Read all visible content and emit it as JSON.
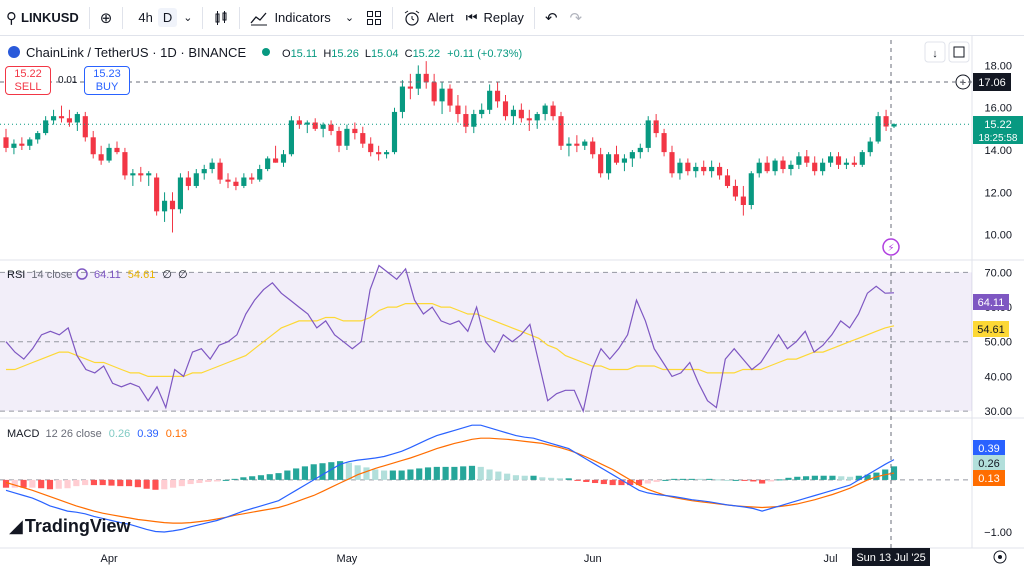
{
  "toolbar": {
    "symbol": "LINKUSD",
    "interval_a": "4h",
    "interval_b": "D",
    "indicators_label": "Indicators",
    "alert_label": "Alert",
    "replay_label": "Replay"
  },
  "legend": {
    "title": "ChainLink / TetherUS · 1D · BINANCE",
    "o_label": "O",
    "o_value": "15.11",
    "h_label": "H",
    "h_value": "15.26",
    "l_label": "L",
    "l_value": "15.04",
    "c_label": "C",
    "c_value": "15.22",
    "change": "+0.11 (+0.73%)"
  },
  "trade": {
    "sell_price": "15.22",
    "sell_label": "SELL",
    "buy_price": "15.23",
    "buy_label": "BUY",
    "spread": "0.01"
  },
  "rsi_legend": {
    "name": "RSI",
    "params": "14 close",
    "v1": "64.11",
    "v2": "54.61",
    "v3": "∅",
    "v4": "∅"
  },
  "macd_legend": {
    "name": "MACD",
    "params": "12 26 close",
    "v1": "0.26",
    "v2": "0.39",
    "v3": "0.13"
  },
  "price_labels": {
    "crosshair": "17.06",
    "last_price": "15.22",
    "countdown": "18:25:58"
  },
  "rsi_labels": {
    "rsi": "64.11",
    "ma": "54.61"
  },
  "macd_labels": {
    "macd": "0.39",
    "hist": "0.26",
    "signal": "0.13"
  },
  "date_marker": "Sun 13 Jul '25",
  "logo_text": "TradingView",
  "colors": {
    "up": "#089981",
    "down": "#f23645",
    "rsi": "#7e57c2",
    "rsi_ma": "#fdd835",
    "macd": "#2962ff",
    "signal": "#ff6d00",
    "hist_up_strong": "#26a69a",
    "hist_up_weak": "#b2dfdb",
    "hist_down_strong": "#ff5252",
    "hist_down_weak": "#ffcdd2"
  },
  "chart_data": [
    {
      "type": "candlestick",
      "pane": "price",
      "title": "ChainLink / TetherUS · 1D · BINANCE",
      "x_tick_labels": [
        "Apr",
        "May",
        "Jun",
        "Jul"
      ],
      "y_ticks": [
        18.0,
        16.0,
        14.0,
        12.0,
        10.0
      ],
      "ylim": [
        8.8,
        19.2
      ],
      "ohlc": [
        [
          14.6,
          15.0,
          13.9,
          14.1
        ],
        [
          14.1,
          14.5,
          13.8,
          14.3
        ],
        [
          14.3,
          14.6,
          14.0,
          14.2
        ],
        [
          14.2,
          14.6,
          14.0,
          14.5
        ],
        [
          14.5,
          14.9,
          14.3,
          14.8
        ],
        [
          14.8,
          15.6,
          14.7,
          15.4
        ],
        [
          15.4,
          15.9,
          15.2,
          15.6
        ],
        [
          15.6,
          16.1,
          15.3,
          15.5
        ],
        [
          15.5,
          15.9,
          15.1,
          15.3
        ],
        [
          15.3,
          15.8,
          14.9,
          15.7
        ],
        [
          15.6,
          15.8,
          14.4,
          14.6
        ],
        [
          14.6,
          14.9,
          13.6,
          13.8
        ],
        [
          13.8,
          14.2,
          13.3,
          13.5
        ],
        [
          13.5,
          14.3,
          13.4,
          14.1
        ],
        [
          14.1,
          14.4,
          13.8,
          13.9
        ],
        [
          13.9,
          14.1,
          12.6,
          12.8
        ],
        [
          12.8,
          13.1,
          12.3,
          12.9
        ],
        [
          12.9,
          13.2,
          12.5,
          12.8
        ],
        [
          12.8,
          13.0,
          12.3,
          12.9
        ],
        [
          12.7,
          12.9,
          10.9,
          11.1
        ],
        [
          11.1,
          12.0,
          10.6,
          11.6
        ],
        [
          11.6,
          12.0,
          10.1,
          11.2
        ],
        [
          11.2,
          12.9,
          11.0,
          12.7
        ],
        [
          12.7,
          13.0,
          12.1,
          12.3
        ],
        [
          12.3,
          13.1,
          12.2,
          12.9
        ],
        [
          12.9,
          13.3,
          12.6,
          13.1
        ],
        [
          13.1,
          13.6,
          12.9,
          13.4
        ],
        [
          13.4,
          13.6,
          12.4,
          12.6
        ],
        [
          12.6,
          12.9,
          12.2,
          12.5
        ],
        [
          12.5,
          12.7,
          12.1,
          12.3
        ],
        [
          12.3,
          12.9,
          12.2,
          12.7
        ],
        [
          12.7,
          12.9,
          12.4,
          12.6
        ],
        [
          12.6,
          13.3,
          12.5,
          13.1
        ],
        [
          13.1,
          13.7,
          13.0,
          13.6
        ],
        [
          13.6,
          14.2,
          13.4,
          13.4
        ],
        [
          13.4,
          14.0,
          13.2,
          13.8
        ],
        [
          13.8,
          15.6,
          13.7,
          15.4
        ],
        [
          15.4,
          15.6,
          15.0,
          15.2
        ],
        [
          15.2,
          15.4,
          14.8,
          15.3
        ],
        [
          15.3,
          15.5,
          14.9,
          15.0
        ],
        [
          15.0,
          15.3,
          14.6,
          15.2
        ],
        [
          15.2,
          15.4,
          14.7,
          14.9
        ],
        [
          14.9,
          15.1,
          13.9,
          14.2
        ],
        [
          14.2,
          15.2,
          14.0,
          15.0
        ],
        [
          15.0,
          15.3,
          14.5,
          14.8
        ],
        [
          14.8,
          15.1,
          14.1,
          14.3
        ],
        [
          14.3,
          14.6,
          13.7,
          13.9
        ],
        [
          13.9,
          14.2,
          13.5,
          13.8
        ],
        [
          13.8,
          14.0,
          13.6,
          13.9
        ],
        [
          13.9,
          16.0,
          13.8,
          15.8
        ],
        [
          15.8,
          17.3,
          15.5,
          17.0
        ],
        [
          17.0,
          17.6,
          16.4,
          16.9
        ],
        [
          16.9,
          18.0,
          16.6,
          17.6
        ],
        [
          17.6,
          18.2,
          16.9,
          17.2
        ],
        [
          17.2,
          17.6,
          16.1,
          16.3
        ],
        [
          16.3,
          17.2,
          15.7,
          16.9
        ],
        [
          16.9,
          17.1,
          15.8,
          16.1
        ],
        [
          16.1,
          16.6,
          15.3,
          15.7
        ],
        [
          15.7,
          16.1,
          14.8,
          15.1
        ],
        [
          15.1,
          15.9,
          14.8,
          15.7
        ],
        [
          15.7,
          16.2,
          15.5,
          15.9
        ],
        [
          15.9,
          17.1,
          15.7,
          16.8
        ],
        [
          16.8,
          17.2,
          16.0,
          16.3
        ],
        [
          16.3,
          16.6,
          15.4,
          15.6
        ],
        [
          15.6,
          16.1,
          15.2,
          15.9
        ],
        [
          15.9,
          16.2,
          15.3,
          15.5
        ],
        [
          15.5,
          15.9,
          14.9,
          15.4
        ],
        [
          15.4,
          15.8,
          15.0,
          15.7
        ],
        [
          15.7,
          16.2,
          15.4,
          16.1
        ],
        [
          16.1,
          16.3,
          15.4,
          15.6
        ],
        [
          15.6,
          15.8,
          14.0,
          14.2
        ],
        [
          14.2,
          14.6,
          13.7,
          14.3
        ],
        [
          14.3,
          14.7,
          13.9,
          14.2
        ],
        [
          14.2,
          14.5,
          14.0,
          14.4
        ],
        [
          14.4,
          14.6,
          13.6,
          13.8
        ],
        [
          13.8,
          14.1,
          12.7,
          12.9
        ],
        [
          12.9,
          13.9,
          12.6,
          13.8
        ],
        [
          13.8,
          14.2,
          13.3,
          13.4
        ],
        [
          13.4,
          13.8,
          13.0,
          13.6
        ],
        [
          13.6,
          14.0,
          13.2,
          13.9
        ],
        [
          13.9,
          14.3,
          13.6,
          14.1
        ],
        [
          14.1,
          15.6,
          13.9,
          15.4
        ],
        [
          15.4,
          15.7,
          14.6,
          14.8
        ],
        [
          14.8,
          15.0,
          13.7,
          13.9
        ],
        [
          13.9,
          14.2,
          12.7,
          12.9
        ],
        [
          12.9,
          13.6,
          12.6,
          13.4
        ],
        [
          13.4,
          13.6,
          12.8,
          13.0
        ],
        [
          13.0,
          13.4,
          12.7,
          13.2
        ],
        [
          13.2,
          13.5,
          12.8,
          13.0
        ],
        [
          13.0,
          13.5,
          12.7,
          13.2
        ],
        [
          13.2,
          13.4,
          12.6,
          12.8
        ],
        [
          12.8,
          13.1,
          12.2,
          12.3
        ],
        [
          12.3,
          12.6,
          11.6,
          11.8
        ],
        [
          11.8,
          12.3,
          10.9,
          11.4
        ],
        [
          11.4,
          13.0,
          11.2,
          12.9
        ],
        [
          12.9,
          13.6,
          12.7,
          13.4
        ],
        [
          13.4,
          13.7,
          12.9,
          13.0
        ],
        [
          13.0,
          13.6,
          12.8,
          13.5
        ],
        [
          13.5,
          13.7,
          12.9,
          13.1
        ],
        [
          13.1,
          13.5,
          12.8,
          13.3
        ],
        [
          13.3,
          13.9,
          13.1,
          13.7
        ],
        [
          13.7,
          14.0,
          13.2,
          13.4
        ],
        [
          13.4,
          13.7,
          12.8,
          13.0
        ],
        [
          13.0,
          13.6,
          12.8,
          13.4
        ],
        [
          13.4,
          13.9,
          13.2,
          13.7
        ],
        [
          13.7,
          13.9,
          13.1,
          13.3
        ],
        [
          13.3,
          13.6,
          13.1,
          13.4
        ],
        [
          13.4,
          13.7,
          13.2,
          13.3
        ],
        [
          13.3,
          14.0,
          13.2,
          13.9
        ],
        [
          13.9,
          14.6,
          13.7,
          14.4
        ],
        [
          14.4,
          15.8,
          14.3,
          15.6
        ],
        [
          15.6,
          15.9,
          14.9,
          15.11
        ],
        [
          15.11,
          15.26,
          15.04,
          15.22
        ]
      ],
      "markers": {
        "last_price": 15.22,
        "crosshair_price": 17.06
      }
    },
    {
      "type": "line",
      "pane": "rsi",
      "title": "RSI 14 close",
      "y_ticks": [
        70.0,
        60.0,
        50.0,
        40.0,
        30.0
      ],
      "ylim": [
        28,
        73
      ],
      "bands": [
        30,
        50,
        70
      ],
      "series": [
        {
          "name": "RSI",
          "values": [
            50,
            47,
            45,
            48,
            52,
            53,
            52,
            54,
            46,
            42,
            41,
            43,
            38,
            37,
            38,
            37,
            33,
            37,
            31,
            42,
            40,
            47,
            48,
            45,
            49,
            50,
            52,
            58,
            62,
            65,
            67,
            64,
            62,
            60,
            58,
            54,
            56,
            52,
            50,
            48,
            50,
            65,
            72,
            70,
            68,
            71,
            62,
            58,
            60,
            56,
            55,
            56,
            53,
            60,
            50,
            47,
            52,
            50,
            52,
            55,
            44,
            33,
            35,
            36,
            36,
            30,
            42,
            48,
            45,
            48,
            52,
            62,
            56,
            48,
            44,
            40,
            41,
            44,
            38,
            33,
            31,
            45,
            48,
            45,
            42,
            44,
            48,
            52,
            48,
            50,
            53,
            47,
            49,
            52,
            56,
            54,
            58,
            64,
            66,
            64,
            64.11
          ]
        },
        {
          "name": "MA",
          "values": [
            42,
            42,
            43,
            44,
            45,
            46,
            47,
            47,
            46,
            45,
            44,
            44,
            43,
            42,
            41,
            41,
            40,
            40,
            40,
            40,
            40,
            41,
            41,
            42,
            43,
            44,
            45,
            46,
            48,
            50,
            52,
            54,
            55,
            56,
            56,
            56,
            57,
            57,
            56,
            56,
            56,
            57,
            59,
            60,
            60,
            61,
            61,
            61,
            61,
            60,
            60,
            59,
            58,
            58,
            57,
            56,
            55,
            54,
            53,
            52,
            51,
            49,
            48,
            46,
            45,
            44,
            43,
            43,
            42,
            42,
            42,
            43,
            43,
            43,
            42,
            42,
            42,
            42,
            42,
            41,
            41,
            41,
            41,
            42,
            42,
            42,
            43,
            44,
            45,
            45,
            46,
            47,
            47,
            48,
            49,
            50,
            51,
            52,
            53,
            54,
            54.61
          ]
        }
      ]
    },
    {
      "type": "line+bar",
      "pane": "macd",
      "title": "MACD 12 26 close",
      "y_ticks": [
        -1.0
      ],
      "ylim": [
        -1.25,
        1.15
      ],
      "series": [
        {
          "name": "MACD",
          "values": [
            -0.2,
            -0.25,
            -0.3,
            -0.35,
            -0.42,
            -0.5,
            -0.55,
            -0.6,
            -0.62,
            -0.65,
            -0.7,
            -0.74,
            -0.78,
            -0.82,
            -0.85,
            -0.9,
            -0.95,
            -0.99,
            -1.0,
            -0.98,
            -0.95,
            -0.9,
            -0.86,
            -0.82,
            -0.78,
            -0.72,
            -0.66,
            -0.6,
            -0.55,
            -0.5,
            -0.45,
            -0.4,
            -0.3,
            -0.2,
            -0.1,
            0.0,
            0.1,
            0.2,
            0.3,
            0.35,
            0.38,
            0.4,
            0.42,
            0.45,
            0.5,
            0.55,
            0.62,
            0.7,
            0.78,
            0.85,
            0.9,
            0.95,
            1.0,
            1.05,
            1.05,
            1.0,
            0.95,
            0.9,
            0.85,
            0.82,
            0.8,
            0.75,
            0.7,
            0.65,
            0.6,
            0.5,
            0.4,
            0.3,
            0.2,
            0.1,
            0.0,
            -0.1,
            -0.2,
            -0.25,
            -0.28,
            -0.3,
            -0.32,
            -0.35,
            -0.38,
            -0.4,
            -0.42,
            -0.45,
            -0.48,
            -0.5,
            -0.52,
            -0.55,
            -0.6,
            -0.55,
            -0.5,
            -0.45,
            -0.4,
            -0.35,
            -0.3,
            -0.25,
            -0.2,
            -0.15,
            -0.1,
            0.0,
            0.1,
            0.2,
            0.3,
            0.39
          ]
        },
        {
          "name": "Signal",
          "values": [
            -0.05,
            -0.1,
            -0.15,
            -0.2,
            -0.26,
            -0.32,
            -0.38,
            -0.44,
            -0.5,
            -0.55,
            -0.6,
            -0.64,
            -0.67,
            -0.7,
            -0.73,
            -0.76,
            -0.78,
            -0.8,
            -0.82,
            -0.83,
            -0.83,
            -0.82,
            -0.8,
            -0.78,
            -0.75,
            -0.72,
            -0.68,
            -0.65,
            -0.62,
            -0.59,
            -0.56,
            -0.53,
            -0.48,
            -0.42,
            -0.36,
            -0.3,
            -0.22,
            -0.14,
            -0.06,
            0.02,
            0.1,
            0.16,
            0.22,
            0.27,
            0.32,
            0.37,
            0.42,
            0.48,
            0.54,
            0.6,
            0.65,
            0.7,
            0.74,
            0.78,
            0.8,
            0.8,
            0.79,
            0.78,
            0.76,
            0.74,
            0.72,
            0.7,
            0.66,
            0.62,
            0.57,
            0.51,
            0.44,
            0.36,
            0.28,
            0.2,
            0.1,
            0.0,
            -0.1,
            -0.18,
            -0.24,
            -0.3,
            -0.34,
            -0.37,
            -0.4,
            -0.42,
            -0.44,
            -0.46,
            -0.48,
            -0.5,
            -0.51,
            -0.52,
            -0.53,
            -0.52,
            -0.51,
            -0.49,
            -0.46,
            -0.42,
            -0.38,
            -0.33,
            -0.28,
            -0.22,
            -0.16,
            -0.08,
            0.0,
            0.06,
            0.1,
            0.13
          ]
        }
      ]
    }
  ]
}
